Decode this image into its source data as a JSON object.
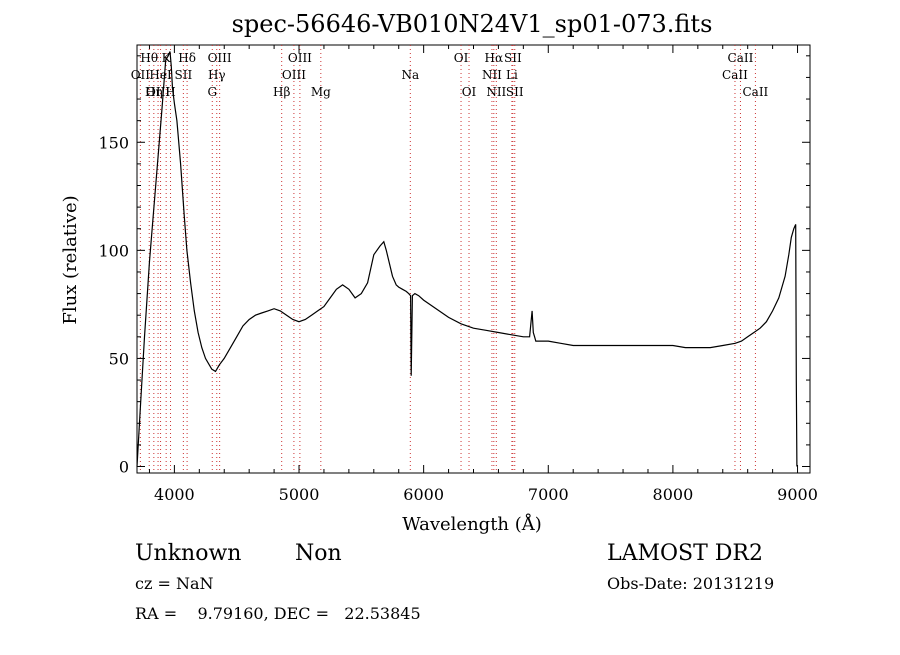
{
  "chart_data": {
    "type": "line",
    "title": "spec-56646-VB010N24V1_sp01-073.fits",
    "xlabel": "Wavelength (Å)",
    "ylabel": "Flux (relative)",
    "xlim": [
      3700,
      9100
    ],
    "ylim": [
      -3,
      195
    ],
    "xticks": [
      4000,
      5000,
      6000,
      7000,
      8000,
      9000
    ],
    "yticks": [
      0,
      50,
      100,
      150
    ],
    "grid": false,
    "series": [
      {
        "x": [
          3700,
          3730,
          3760,
          3800,
          3850,
          3900,
          3930,
          3950,
          3965,
          3975,
          3985,
          4000,
          4020,
          4050,
          4080,
          4100,
          4130,
          4160,
          4190,
          4220,
          4250,
          4280,
          4300,
          4330,
          4360,
          4400,
          4450,
          4500,
          4550,
          4600,
          4650,
          4700,
          4750,
          4800,
          4850,
          4900,
          4950,
          5000,
          5050,
          5100,
          5150,
          5200,
          5250,
          5300,
          5350,
          5400,
          5450,
          5500,
          5550,
          5600,
          5650,
          5680,
          5700,
          5750,
          5780,
          5800,
          5830,
          5860,
          5880,
          5895,
          5900,
          5910,
          5930,
          5960,
          6000,
          6100,
          6200,
          6300,
          6400,
          6500,
          6600,
          6700,
          6800,
          6850,
          6870,
          6880,
          6890,
          6900,
          6950,
          7000,
          7100,
          7200,
          7300,
          7400,
          7500,
          7600,
          7700,
          7800,
          7900,
          8000,
          8100,
          8200,
          8300,
          8400,
          8500,
          8550,
          8600,
          8650,
          8700,
          8750,
          8800,
          8850,
          8900,
          8930,
          8950,
          8970,
          8985,
          8990,
          8995
        ],
        "y": [
          0,
          30,
          60,
          95,
          130,
          165,
          188,
          190,
          192,
          185,
          175,
          168,
          160,
          140,
          115,
          100,
          85,
          72,
          62,
          55,
          50,
          47,
          45,
          44,
          47,
          50,
          55,
          60,
          65,
          68,
          70,
          71,
          72,
          73,
          72,
          70,
          68,
          67,
          68,
          70,
          72,
          74,
          78,
          82,
          84,
          82,
          78,
          80,
          85,
          98,
          102,
          104,
          100,
          88,
          84,
          83,
          82,
          81,
          80,
          79,
          42,
          79,
          80,
          79,
          77,
          73,
          69,
          66,
          64,
          63,
          62,
          61,
          60,
          60,
          72,
          62,
          60,
          58,
          58,
          58,
          57,
          56,
          56,
          56,
          56,
          56,
          56,
          56,
          56,
          56,
          55,
          55,
          55,
          56,
          57,
          58,
          60,
          62,
          64,
          67,
          72,
          78,
          88,
          98,
          106,
          110,
          112,
          40,
          0
        ]
      }
    ]
  },
  "line_ids": [
    {
      "label": "Hθ",
      "x": 3798,
      "row": 0
    },
    {
      "label": "K",
      "x": 3934,
      "row": 0
    },
    {
      "label": "Hδ",
      "x": 4102,
      "row": 0
    },
    {
      "label": "OIII",
      "x": 4363,
      "row": 0
    },
    {
      "label": "OIII",
      "x": 5007,
      "row": 0
    },
    {
      "label": "OI",
      "x": 6300,
      "row": 0
    },
    {
      "label": "Hα",
      "x": 6563,
      "row": 0
    },
    {
      "label": "SII",
      "x": 6716,
      "row": 0
    },
    {
      "label": "CaII",
      "x": 8542,
      "row": 0
    },
    {
      "label": "OII",
      "x": 3727,
      "row": 1
    },
    {
      "label": "HeI",
      "x": 3889,
      "row": 1
    },
    {
      "label": "SII",
      "x": 4072,
      "row": 1
    },
    {
      "label": "Hγ",
      "x": 4340,
      "row": 1
    },
    {
      "label": "OIII",
      "x": 4959,
      "row": 1
    },
    {
      "label": "Na",
      "x": 5893,
      "row": 1
    },
    {
      "label": "NII",
      "x": 6548,
      "row": 1
    },
    {
      "label": "Li",
      "x": 6708,
      "row": 1
    },
    {
      "label": "CaII",
      "x": 8498,
      "row": 1
    },
    {
      "label": "OIII",
      "x": 3869,
      "row": 2
    },
    {
      "label": "Hη",
      "x": 3835,
      "row": 2
    },
    {
      "label": "H",
      "x": 3969,
      "row": 2
    },
    {
      "label": "G",
      "x": 4304,
      "row": 2
    },
    {
      "label": "Hβ",
      "x": 4861,
      "row": 2
    },
    {
      "label": "Mg",
      "x": 5175,
      "row": 2
    },
    {
      "label": "OI",
      "x": 6364,
      "row": 2
    },
    {
      "label": "NII",
      "x": 6583,
      "row": 2
    },
    {
      "label": "SII",
      "x": 6731,
      "row": 2
    },
    {
      "label": "CaII",
      "x": 8662,
      "row": 2
    }
  ],
  "info": {
    "class": "Unknown",
    "subclass": "Non",
    "survey": "LAMOST DR2",
    "cz": "cz = NaN",
    "obs_date": "Obs-Date: 20131219",
    "coords": "RA =    9.79160, DEC =   22.53845"
  },
  "colors": {
    "line_marker": "#cc3333",
    "spectrum": "#000000"
  }
}
